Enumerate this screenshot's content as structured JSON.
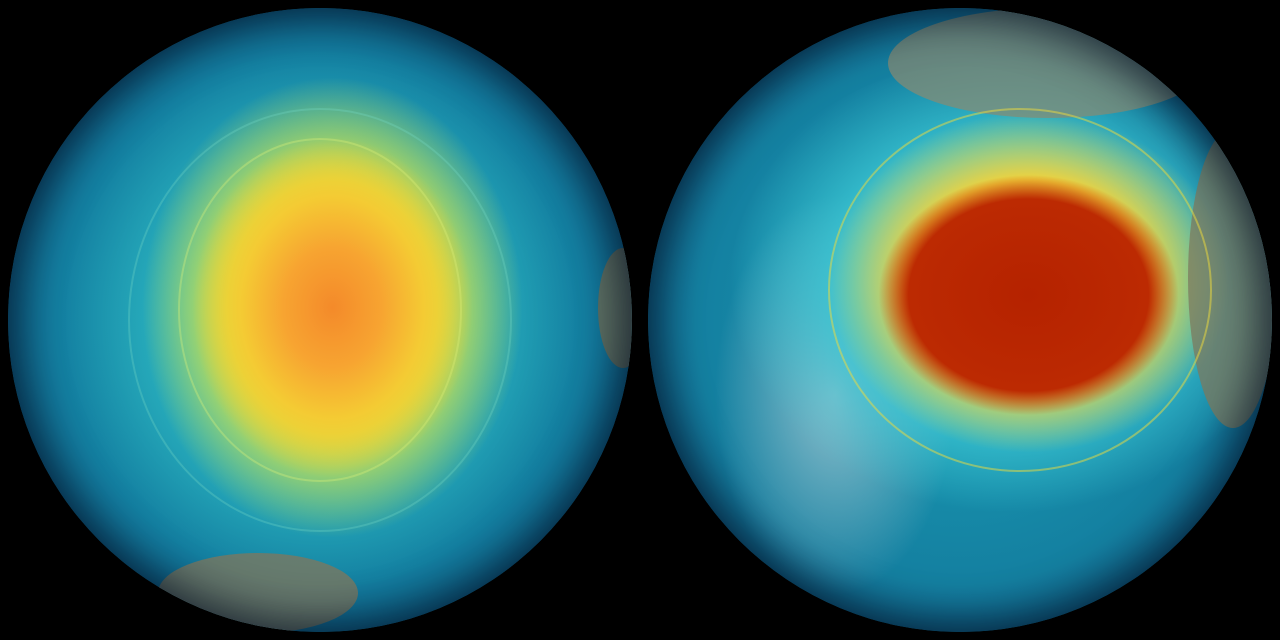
{
  "panels": [
    {
      "id": "left-globe",
      "colors": {
        "core": "#f48a2a",
        "mid": "#e8e640",
        "outer": "#1aa2b8",
        "edge": "#082a48"
      }
    },
    {
      "id": "right-globe",
      "colors": {
        "core": "#b52200",
        "mid": "#f2d23a",
        "outer": "#3cc7d4",
        "edge": "#082a48"
      }
    }
  ]
}
